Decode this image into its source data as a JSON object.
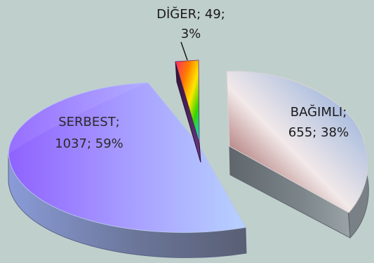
{
  "chart_data": {
    "type": "pie",
    "title": "",
    "slices": [
      {
        "label": "SERBEST",
        "value": 1037,
        "percent": 59,
        "label_line1": "SERBEST;",
        "label_line2": "1037; 59%",
        "label_color": "#2a2a2a"
      },
      {
        "label": "DİĞER",
        "value": 49,
        "percent": 3,
        "label_line1": "DİĞER; 49;",
        "label_line2": "3%",
        "label_color": "#1a1a1a"
      },
      {
        "label": "BAĞIMLI",
        "value": 655,
        "percent": 38,
        "label_line1": "BAĞIMLI;",
        "label_line2": "655; 38%",
        "label_color": "#1a1a1a"
      }
    ],
    "three_d": true,
    "exploded": true,
    "legend": "none"
  },
  "colors": {
    "background": "#bfcfcc",
    "serbest_top_left": "#8f62ff",
    "serbest_top_right": "#b7d1ff",
    "serbest_side": "#6f7da6",
    "bagimli_top_left": "#7a1c1c",
    "bagimli_top_mid": "#f2e9e9",
    "bagimli_top_right": "#7ea2d8",
    "bagimli_side": "#737b80",
    "diger_stripes": [
      "#ff2a6e",
      "#ff7a00",
      "#ffe600",
      "#35d400",
      "#0ad2ff"
    ]
  }
}
